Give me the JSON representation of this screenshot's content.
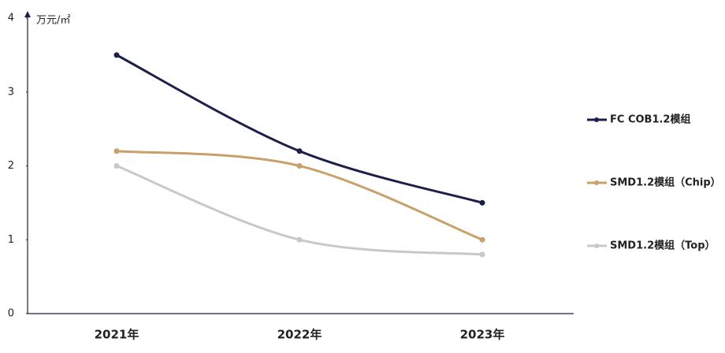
{
  "chart_data": {
    "type": "line",
    "y_unit": "万元/㎡",
    "categories": [
      "2021年",
      "2022年",
      "2023年"
    ],
    "series": [
      {
        "name": "FC COB1.2模组",
        "color": "#1b1f4a",
        "values": [
          3.5,
          2.2,
          1.5
        ]
      },
      {
        "name": "SMD1.2模组（Chip）",
        "color": "#c9a06a",
        "values": [
          2.2,
          2.0,
          1.0
        ]
      },
      {
        "name": "SMD1.2模组（Top）",
        "color": "#c8c8c8",
        "values": [
          2.0,
          1.0,
          0.8
        ]
      }
    ],
    "ylim": [
      0,
      4
    ],
    "yticks": [
      0,
      1,
      2,
      3,
      4
    ],
    "grid": false,
    "legend": "right",
    "smooth": true
  }
}
